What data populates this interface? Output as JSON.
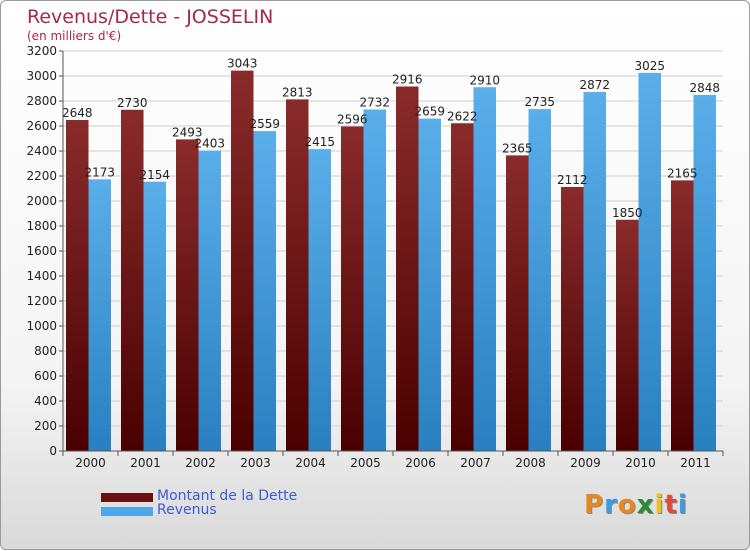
{
  "header": {
    "title": "Revenus/Dette - JOSSELIN",
    "subtitle": "(en milliers d'€)"
  },
  "chart_data": {
    "type": "bar",
    "categories": [
      "2000",
      "2001",
      "2002",
      "2003",
      "2004",
      "2005",
      "2006",
      "2007",
      "2008",
      "2009",
      "2010",
      "2011"
    ],
    "series": [
      {
        "name": "Montant de la Dette",
        "color": "#7a1a1a",
        "values": [
          2648,
          2730,
          2493,
          3043,
          2813,
          2596,
          2916,
          2622,
          2365,
          2112,
          1850,
          2165
        ]
      },
      {
        "name": "Revenus",
        "color": "#4da6e8",
        "values": [
          2173,
          2154,
          2403,
          2559,
          2415,
          2732,
          2659,
          2910,
          2735,
          2872,
          3025,
          2848
        ]
      }
    ],
    "ylim": [
      0,
      3200
    ],
    "yticks": [
      0,
      200,
      400,
      600,
      800,
      1000,
      1200,
      1400,
      1600,
      1800,
      2000,
      2200,
      2400,
      2600,
      2800,
      3000,
      3200
    ],
    "grid": true,
    "legend_position": "bottom-left"
  },
  "legend": {
    "items": [
      {
        "label": "Montant de la Dette",
        "color": "#6a0f0f"
      },
      {
        "label": "Revenus",
        "color": "#4da6e8"
      }
    ]
  },
  "logo": {
    "letters": [
      {
        "ch": "P",
        "color": "#e8871e"
      },
      {
        "ch": "r",
        "color": "#3a9be0"
      },
      {
        "ch": "o",
        "color": "#e8871e"
      },
      {
        "ch": "x",
        "color": "#2a8a3a"
      },
      {
        "ch": "i",
        "color": "#e8c21e"
      },
      {
        "ch": "t",
        "color": "#e04a3a"
      },
      {
        "ch": "i",
        "color": "#3a9be0"
      }
    ]
  }
}
